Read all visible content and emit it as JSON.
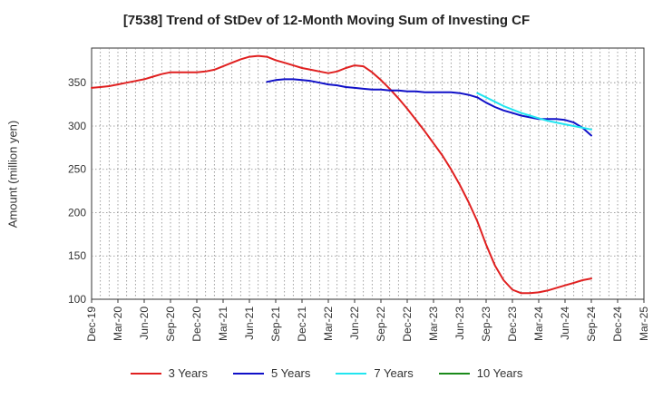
{
  "chart_data": {
    "type": "line",
    "title": "[7538]  Trend of StDev of 12-Month Moving Sum of Investing CF",
    "xlabel": "",
    "ylabel": "Amount (million yen)",
    "ylim": [
      100,
      390
    ],
    "yticks": [
      100,
      150,
      200,
      250,
      300,
      350
    ],
    "grid": true,
    "legend_position": "bottom",
    "x_tick_labels": [
      "Dec-19",
      "Mar-20",
      "Jun-20",
      "Sep-20",
      "Dec-20",
      "Mar-21",
      "Jun-21",
      "Sep-21",
      "Dec-21",
      "Mar-22",
      "Jun-22",
      "Sep-22",
      "Dec-22",
      "Mar-23",
      "Jun-23",
      "Sep-23",
      "Dec-23",
      "Mar-24",
      "Jun-24",
      "Sep-24",
      "Dec-24",
      "Mar-25"
    ],
    "series": [
      {
        "name": "3 Years",
        "color": "#e02020",
        "x": [
          "Dec-19",
          "Jan-20",
          "Feb-20",
          "Mar-20",
          "Apr-20",
          "May-20",
          "Jun-20",
          "Jul-20",
          "Aug-20",
          "Sep-20",
          "Oct-20",
          "Nov-20",
          "Dec-20",
          "Jan-21",
          "Feb-21",
          "Mar-21",
          "Apr-21",
          "May-21",
          "Jun-21",
          "Jul-21",
          "Aug-21",
          "Sep-21",
          "Oct-21",
          "Nov-21",
          "Dec-21",
          "Jan-22",
          "Feb-22",
          "Mar-22",
          "Apr-22",
          "May-22",
          "Jun-22",
          "Jul-22",
          "Aug-22",
          "Sep-22",
          "Oct-22",
          "Nov-22",
          "Dec-22",
          "Jan-23",
          "Feb-23",
          "Mar-23",
          "Apr-23",
          "May-23",
          "Jun-23",
          "Jul-23",
          "Aug-23",
          "Sep-23",
          "Oct-23",
          "Nov-23",
          "Dec-23",
          "Jan-24",
          "Feb-24",
          "Mar-24",
          "Apr-24",
          "May-24",
          "Jun-24",
          "Jul-24",
          "Aug-24",
          "Sep-24"
        ],
        "values": [
          344,
          345,
          346,
          348,
          350,
          352,
          354,
          357,
          360,
          362,
          362,
          362,
          362,
          363,
          365,
          369,
          373,
          377,
          380,
          381,
          380,
          376,
          373,
          370,
          367,
          365,
          363,
          361,
          363,
          367,
          370,
          369,
          362,
          353,
          343,
          332,
          320,
          307,
          294,
          280,
          266,
          250,
          232,
          212,
          190,
          163,
          139,
          122,
          111,
          107,
          107,
          108,
          110,
          113,
          116,
          119,
          122,
          124
        ]
      },
      {
        "name": "5 Years",
        "color": "#1010c8",
        "x": [
          "Aug-21",
          "Sep-21",
          "Oct-21",
          "Nov-21",
          "Dec-21",
          "Jan-22",
          "Feb-22",
          "Mar-22",
          "Apr-22",
          "May-22",
          "Jun-22",
          "Jul-22",
          "Aug-22",
          "Sep-22",
          "Oct-22",
          "Nov-22",
          "Dec-22",
          "Jan-23",
          "Feb-23",
          "Mar-23",
          "Apr-23",
          "May-23",
          "Jun-23",
          "Jul-23",
          "Aug-23",
          "Sep-23",
          "Oct-23",
          "Nov-23",
          "Dec-23",
          "Jan-24",
          "Feb-24",
          "Mar-24",
          "Apr-24",
          "May-24",
          "Jun-24",
          "Jul-24",
          "Aug-24",
          "Sep-24"
        ],
        "values": [
          351,
          353,
          354,
          354,
          353,
          352,
          350,
          348,
          347,
          345,
          344,
          343,
          342,
          342,
          341,
          341,
          340,
          340,
          339,
          339,
          339,
          339,
          338,
          336,
          333,
          327,
          322,
          318,
          315,
          312,
          310,
          308,
          308,
          308,
          307,
          304,
          298,
          289
        ]
      },
      {
        "name": "7 Years",
        "color": "#22e5f0",
        "x": [
          "Aug-23",
          "Sep-23",
          "Oct-23",
          "Nov-23",
          "Dec-23",
          "Jan-24",
          "Feb-24",
          "Mar-24",
          "Apr-24",
          "May-24",
          "Jun-24",
          "Jul-24",
          "Aug-24",
          "Sep-24"
        ],
        "values": [
          338,
          333,
          328,
          323,
          319,
          315,
          312,
          309,
          306,
          304,
          302,
          300,
          298,
          296
        ]
      },
      {
        "name": "10 Years",
        "color": "#1a8a1a",
        "x": [],
        "values": []
      }
    ]
  }
}
